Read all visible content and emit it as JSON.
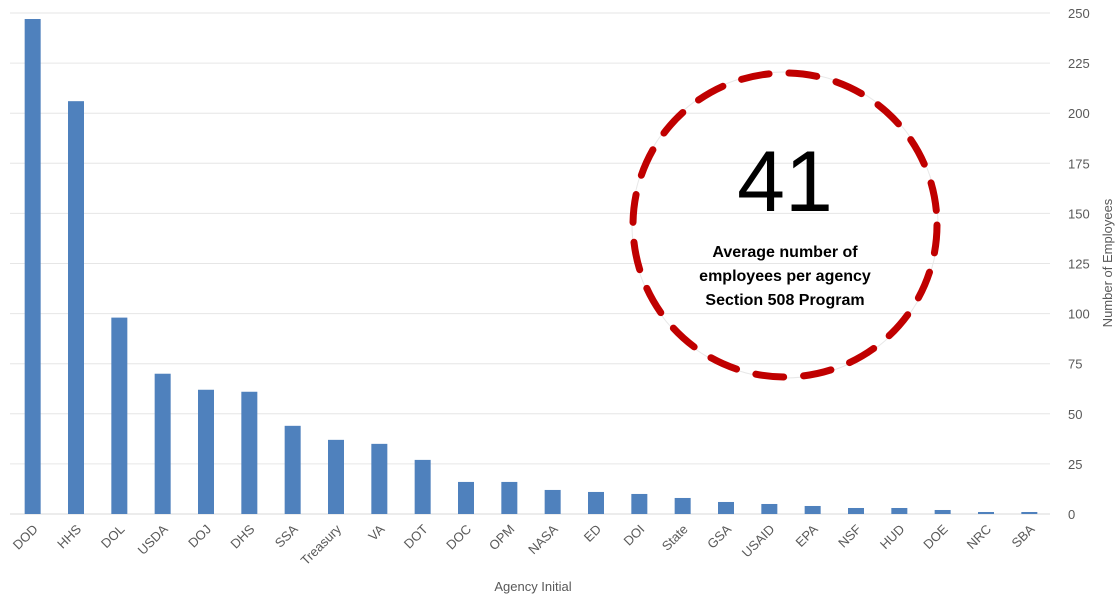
{
  "chart_data": {
    "type": "bar",
    "categories": [
      "DOD",
      "HHS",
      "DOL",
      "USDA",
      "DOJ",
      "DHS",
      "SSA",
      "Treasury",
      "VA",
      "DOT",
      "DOC",
      "OPM",
      "NASA",
      "ED",
      "DOI",
      "State",
      "GSA",
      "USAID",
      "EPA",
      "NSF",
      "HUD",
      "DOE",
      "NRC",
      "SBA"
    ],
    "values": [
      247,
      206,
      98,
      70,
      62,
      61,
      44,
      37,
      35,
      27,
      16,
      16,
      12,
      11,
      10,
      8,
      6,
      5,
      4,
      3,
      3,
      2,
      1,
      1
    ],
    "xlabel": "Agency Initial",
    "ylabel": "Number of Employees",
    "ylim": [
      0,
      250
    ],
    "yticks": [
      0,
      25,
      50,
      75,
      100,
      125,
      150,
      175,
      200,
      225,
      250
    ],
    "y_axis_side": "right",
    "grid": true,
    "bar_color": "#4f81bd",
    "annotation": {
      "value": "41",
      "lines": [
        "Average number of",
        "employees per agency",
        "Section 508 Program"
      ],
      "border_color": "#c00000"
    }
  }
}
